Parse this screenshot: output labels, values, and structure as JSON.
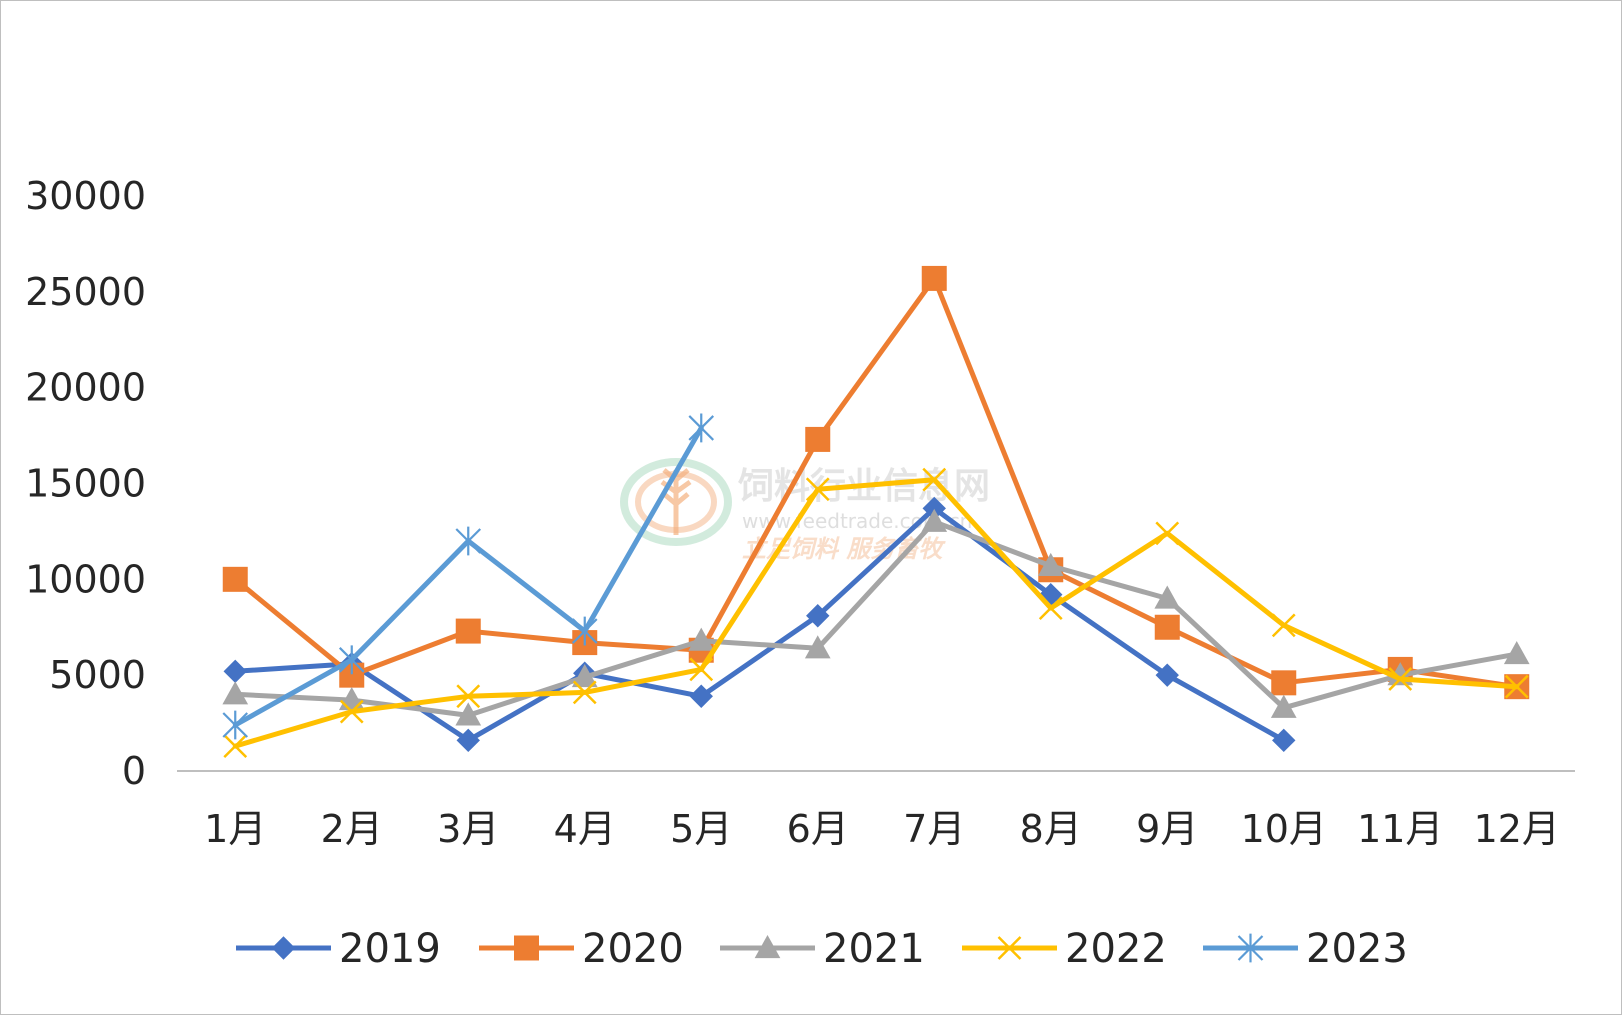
{
  "chart_data": {
    "type": "line",
    "categories": [
      "1月",
      "2月",
      "3月",
      "4月",
      "5月",
      "6月",
      "7月",
      "8月",
      "9月",
      "10月",
      "11月",
      "12月"
    ],
    "ylim": [
      0,
      30000
    ],
    "yticks": [
      0,
      5000,
      10000,
      15000,
      20000,
      25000,
      30000
    ],
    "grid": false,
    "legend_position": "bottom",
    "series": [
      {
        "name": "2019",
        "color": "#4472C4",
        "marker": "diamond",
        "values": [
          5200,
          5600,
          1600,
          5100,
          3900,
          8100,
          13700,
          9200,
          5000,
          1600,
          null,
          null
        ]
      },
      {
        "name": "2020",
        "color": "#ED7D31",
        "marker": "square",
        "values": [
          10000,
          5000,
          7300,
          6700,
          6300,
          17300,
          25700,
          10500,
          7500,
          4600,
          5300,
          4400
        ]
      },
      {
        "name": "2021",
        "color": "#A5A5A5",
        "marker": "triangle",
        "values": [
          4000,
          3700,
          2900,
          4900,
          6800,
          6400,
          13000,
          10700,
          9000,
          3300,
          5000,
          6100
        ]
      },
      {
        "name": "2022",
        "color": "#FFC000",
        "marker": "x",
        "values": [
          1300,
          3100,
          3900,
          4100,
          5300,
          14700,
          15200,
          8500,
          12400,
          7600,
          4800,
          4400
        ]
      },
      {
        "name": "2023",
        "color": "#5B9BD5",
        "marker": "asterisk",
        "values": [
          2400,
          5800,
          12000,
          7300,
          17900,
          null,
          null,
          null,
          null,
          null,
          null,
          null
        ]
      }
    ]
  },
  "watermark": {
    "name": "饲料行业信息网",
    "url": "www.feedtrade.com.cn",
    "slogan": "立足饲料 服务畜牧",
    "icon": "wheat-logo-icon"
  }
}
